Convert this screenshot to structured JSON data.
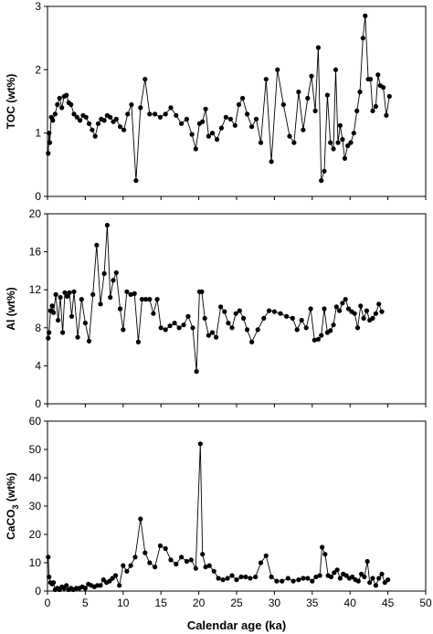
{
  "chart_data": [
    {
      "type": "line",
      "ylabel": "TOC (wt%)",
      "ylim": [
        0,
        3
      ],
      "yticks": [
        0,
        1,
        2,
        3
      ],
      "xlim": [
        0,
        50
      ],
      "color": "#000000",
      "series": [
        {
          "x": [
            0.1,
            0.2,
            0.3,
            0.5,
            0.7,
            1.0,
            1.3,
            1.6,
            1.9,
            2.2,
            2.5,
            2.8,
            3.1,
            3.5,
            3.9,
            4.3,
            4.7,
            5.1,
            5.5,
            5.9,
            6.3,
            6.7,
            7.1,
            7.5,
            7.9,
            8.3,
            8.7,
            9.1,
            9.6,
            10.1,
            10.6,
            11.1,
            11.7,
            12.3,
            12.9,
            13.5,
            14.2,
            14.9,
            15.6,
            16.3,
            17.0,
            17.7,
            18.4,
            19.1,
            19.6,
            20.1,
            20.5,
            20.9,
            21.3,
            21.8,
            22.4,
            23.0,
            23.6,
            24.2,
            24.8,
            25.3,
            25.8,
            26.4,
            27.0,
            27.6,
            28.2,
            28.9,
            29.6,
            30.4,
            31.2,
            32.0,
            32.6,
            33.2,
            33.8,
            34.4,
            34.9,
            35.4,
            35.8,
            36.2,
            36.6,
            37.0,
            37.4,
            37.8,
            38.1,
            38.4,
            38.7,
            39.0,
            39.3,
            39.7,
            40.1,
            40.5,
            40.9,
            41.3,
            41.7,
            42.0,
            42.4,
            42.7,
            43.0,
            43.4,
            43.7,
            44.0,
            44.4,
            44.8,
            45.2
          ],
          "values": [
            0.68,
            1.0,
            0.85,
            1.25,
            1.2,
            1.3,
            1.45,
            1.55,
            1.4,
            1.58,
            1.6,
            1.48,
            1.45,
            1.3,
            1.25,
            1.2,
            1.28,
            1.25,
            1.15,
            1.05,
            0.95,
            1.15,
            1.22,
            1.2,
            1.28,
            1.25,
            1.18,
            1.22,
            1.1,
            1.05,
            1.3,
            1.45,
            0.25,
            1.4,
            1.85,
            1.3,
            1.3,
            1.25,
            1.3,
            1.4,
            1.28,
            1.15,
            1.22,
            0.98,
            0.75,
            1.15,
            1.18,
            1.38,
            0.95,
            1.0,
            0.9,
            1.08,
            1.25,
            1.22,
            1.12,
            1.45,
            1.55,
            1.3,
            1.1,
            1.22,
            0.85,
            1.85,
            0.55,
            2.0,
            1.45,
            0.95,
            0.85,
            1.65,
            1.05,
            1.55,
            1.9,
            1.35,
            2.35,
            0.25,
            0.4,
            1.6,
            0.85,
            0.75,
            2.0,
            0.85,
            1.12,
            0.9,
            0.6,
            0.8,
            0.85,
            1.0,
            1.35,
            1.65,
            2.5,
            2.85,
            1.85,
            1.85,
            1.35,
            1.42,
            1.92,
            1.75,
            1.72,
            1.28,
            1.58
          ]
        }
      ]
    },
    {
      "type": "line",
      "ylabel": "Al (wt%)",
      "ylim": [
        0,
        20
      ],
      "yticks": [
        0,
        4,
        8,
        12,
        16,
        20
      ],
      "xlim": [
        0,
        50
      ],
      "color": "#000000",
      "series": [
        {
          "x": [
            0.1,
            0.2,
            0.4,
            0.6,
            0.8,
            1.1,
            1.4,
            1.7,
            2.0,
            2.3,
            2.6,
            2.9,
            3.2,
            3.5,
            4.0,
            4.5,
            5.0,
            5.5,
            6.0,
            6.5,
            7.0,
            7.5,
            7.9,
            8.3,
            8.7,
            9.1,
            9.6,
            10.0,
            10.5,
            11.0,
            11.5,
            12.0,
            12.5,
            13.0,
            13.5,
            14.0,
            14.5,
            15.0,
            15.6,
            16.2,
            16.8,
            17.4,
            18.0,
            18.6,
            19.2,
            19.7,
            20.1,
            20.4,
            20.8,
            21.3,
            21.8,
            22.3,
            22.9,
            23.4,
            23.9,
            24.4,
            24.9,
            25.4,
            25.9,
            26.4,
            27.0,
            27.8,
            28.6,
            29.3,
            30.0,
            30.8,
            31.6,
            32.4,
            33.0,
            33.6,
            34.2,
            34.8,
            35.3,
            35.8,
            36.2,
            36.6,
            37.0,
            37.4,
            37.8,
            38.2,
            38.6,
            39.0,
            39.4,
            39.8,
            40.2,
            40.6,
            41.0,
            41.4,
            41.8,
            42.2,
            42.6,
            43.0,
            43.4,
            43.8,
            44.2
          ],
          "values": [
            6.9,
            7.5,
            9.8,
            10.3,
            9.6,
            11.5,
            8.8,
            11.2,
            7.5,
            11.7,
            11.3,
            11.7,
            9.2,
            11.8,
            7.0,
            11.0,
            8.5,
            6.6,
            11.5,
            16.7,
            10.5,
            13.7,
            18.8,
            11.2,
            13.0,
            13.8,
            10.0,
            7.8,
            11.8,
            11.5,
            11.6,
            6.5,
            11.0,
            11.0,
            11.0,
            9.5,
            11.0,
            8.0,
            7.8,
            8.2,
            8.5,
            8.0,
            8.3,
            9.2,
            8.0,
            3.4,
            11.8,
            11.8,
            9.0,
            7.2,
            7.5,
            7.0,
            10.2,
            9.7,
            8.5,
            8.0,
            9.5,
            9.8,
            9.0,
            7.8,
            6.5,
            7.8,
            9.0,
            9.8,
            9.7,
            9.5,
            9.2,
            9.0,
            7.8,
            8.8,
            8.0,
            10.0,
            6.7,
            6.8,
            7.2,
            10.0,
            7.5,
            7.7,
            8.3,
            10.2,
            9.8,
            10.6,
            11.0,
            10.0,
            9.7,
            9.5,
            8.0,
            10.3,
            9.0,
            9.8,
            8.8,
            9.0,
            9.5,
            10.5,
            9.7
          ]
        }
      ]
    },
    {
      "type": "line",
      "ylabel": "CaCO3 (wt%)",
      "ylabel_main": "CaCO",
      "ylabel_sub": "3",
      "ylabel_tail": " (wt%)",
      "ylim": [
        0,
        60
      ],
      "yticks": [
        0,
        10,
        20,
        30,
        40,
        50,
        60
      ],
      "xlim": [
        0,
        50
      ],
      "xticks": [
        0,
        5,
        10,
        15,
        20,
        25,
        30,
        35,
        40,
        45,
        50
      ],
      "xlabel": "Calendar age (ka)",
      "color": "#000000",
      "series": [
        {
          "x": [
            0.1,
            0.2,
            0.4,
            0.6,
            0.8,
            1.0,
            1.3,
            1.6,
            1.9,
            2.2,
            2.5,
            2.8,
            3.1,
            3.4,
            3.8,
            4.2,
            4.6,
            5.0,
            5.4,
            5.8,
            6.2,
            6.6,
            7.0,
            7.4,
            7.8,
            8.2,
            8.6,
            9.0,
            9.5,
            10.0,
            10.5,
            11.0,
            11.6,
            12.3,
            12.9,
            13.5,
            14.2,
            14.9,
            15.6,
            16.3,
            17.0,
            17.7,
            18.4,
            19.0,
            19.6,
            20.2,
            20.5,
            20.9,
            21.4,
            22.0,
            22.6,
            23.2,
            23.8,
            24.4,
            25.0,
            25.6,
            26.2,
            26.8,
            27.5,
            28.2,
            28.9,
            29.6,
            30.3,
            31.0,
            31.8,
            32.5,
            33.2,
            33.8,
            34.4,
            35.0,
            35.5,
            36.0,
            36.3,
            36.7,
            37.1,
            37.5,
            37.9,
            38.3,
            38.7,
            39.1,
            39.5,
            39.9,
            40.3,
            40.7,
            41.1,
            41.5,
            41.9,
            42.3,
            42.6,
            43.0,
            43.4,
            43.8,
            44.2,
            44.6,
            45.0
          ],
          "values": [
            12.0,
            5.0,
            3.0,
            2.5,
            3.0,
            0.5,
            1.0,
            0.5,
            1.5,
            1.0,
            2.0,
            0.5,
            1.0,
            0.5,
            1.0,
            1.0,
            1.5,
            1.0,
            2.5,
            2.0,
            1.5,
            2.0,
            2.0,
            4.0,
            3.0,
            3.5,
            4.5,
            5.5,
            2.0,
            9.0,
            7.0,
            9.0,
            12.0,
            25.5,
            13.5,
            10.0,
            8.5,
            16.0,
            15.0,
            11.0,
            9.5,
            12.0,
            10.5,
            11.0,
            8.0,
            52.0,
            13.0,
            8.5,
            9.0,
            7.0,
            4.5,
            4.0,
            4.5,
            5.5,
            4.0,
            5.0,
            5.0,
            4.5,
            5.0,
            10.0,
            12.5,
            5.0,
            3.5,
            3.5,
            4.5,
            3.5,
            4.0,
            4.5,
            4.5,
            3.5,
            5.0,
            5.5,
            15.5,
            13.0,
            5.5,
            5.0,
            6.5,
            7.5,
            4.5,
            6.0,
            5.5,
            4.5,
            5.0,
            4.0,
            3.5,
            6.0,
            5.0,
            10.5,
            3.0,
            4.5,
            2.0,
            4.5,
            6.0,
            3.0,
            4.0
          ]
        }
      ]
    }
  ]
}
